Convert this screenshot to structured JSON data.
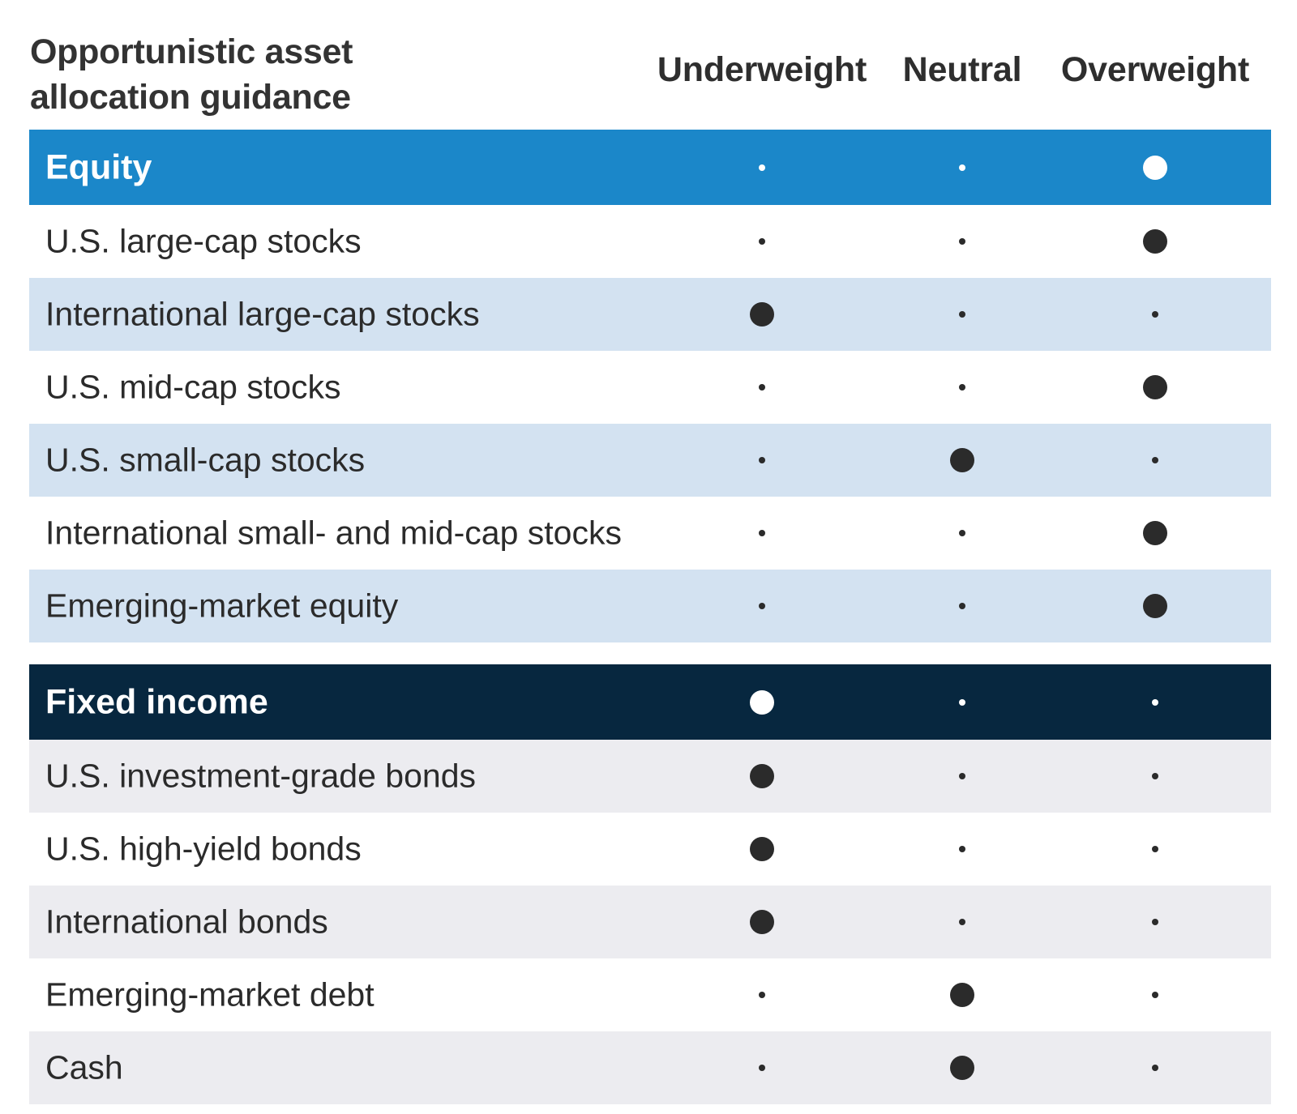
{
  "title": {
    "line1": "Opportunistic asset",
    "line2": "allocation guidance"
  },
  "columns": [
    "Underweight",
    "Neutral",
    "Overweight"
  ],
  "sections": [
    {
      "name": "Equity",
      "header_color": "#1b87c9",
      "header_rating": "Overweight",
      "rows": [
        {
          "label": "U.S. large-cap stocks",
          "rating": "Overweight"
        },
        {
          "label": "International large-cap stocks",
          "rating": "Underweight"
        },
        {
          "label": "U.S. mid-cap stocks",
          "rating": "Overweight"
        },
        {
          "label": "U.S. small-cap stocks",
          "rating": "Neutral"
        },
        {
          "label": "International small- and mid-cap stocks",
          "rating": "Overweight"
        },
        {
          "label": "Emerging-market equity",
          "rating": "Overweight"
        }
      ]
    },
    {
      "name": "Fixed income",
      "header_color": "#07273f",
      "header_rating": "Underweight",
      "rows": [
        {
          "label": "U.S. investment-grade bonds",
          "rating": "Underweight"
        },
        {
          "label": "U.S. high-yield bonds",
          "rating": "Underweight"
        },
        {
          "label": "International bonds",
          "rating": "Underweight"
        },
        {
          "label": "Emerging-market debt",
          "rating": "Neutral"
        },
        {
          "label": "Cash",
          "rating": "Neutral"
        }
      ]
    }
  ]
}
